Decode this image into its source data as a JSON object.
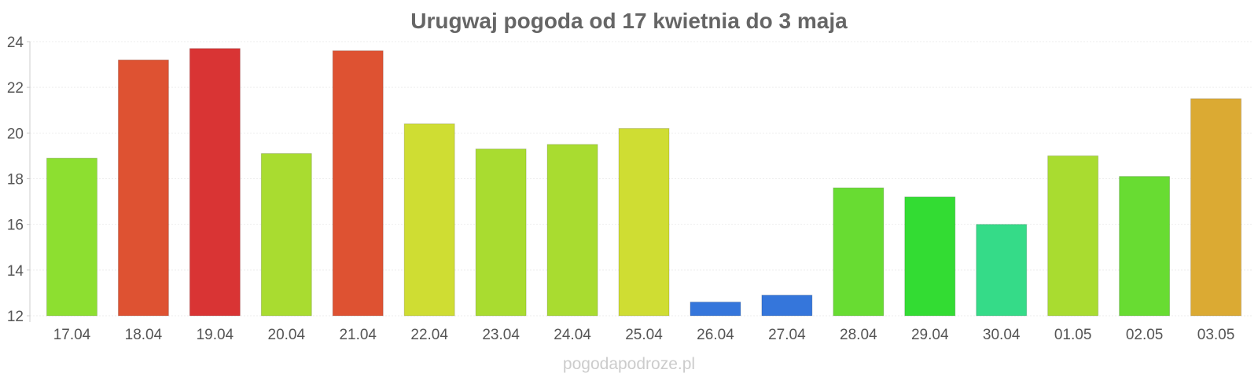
{
  "chart_data": {
    "type": "bar",
    "title": "Urugwaj pogoda od 17 kwietnia do 3 maja",
    "xlabel": "",
    "ylabel": "",
    "categories": [
      "17.04",
      "18.04",
      "19.04",
      "20.04",
      "21.04",
      "22.04",
      "23.04",
      "24.04",
      "25.04",
      "26.04",
      "27.04",
      "28.04",
      "29.04",
      "30.04",
      "01.05",
      "02.05",
      "03.05"
    ],
    "values": [
      18.9,
      23.2,
      23.7,
      19.1,
      23.6,
      20.4,
      19.3,
      19.5,
      20.2,
      12.6,
      12.9,
      17.6,
      17.2,
      16.0,
      19.0,
      18.1,
      21.5
    ],
    "colors": [
      "#8ddf30",
      "#de5232",
      "#d93434",
      "#a9dc30",
      "#de5232",
      "#cfdd33",
      "#a9dc30",
      "#a9dc30",
      "#cfdd33",
      "#3576db",
      "#3576db",
      "#68dc32",
      "#33dc33",
      "#35db88",
      "#a9dc30",
      "#68dc32",
      "#dbaa33"
    ],
    "ylim": [
      12,
      24
    ],
    "yticks": [
      12,
      14,
      16,
      18,
      20,
      22,
      24
    ],
    "grid": true,
    "legend": "none"
  },
  "watermark": "pogodapodroze.pl"
}
